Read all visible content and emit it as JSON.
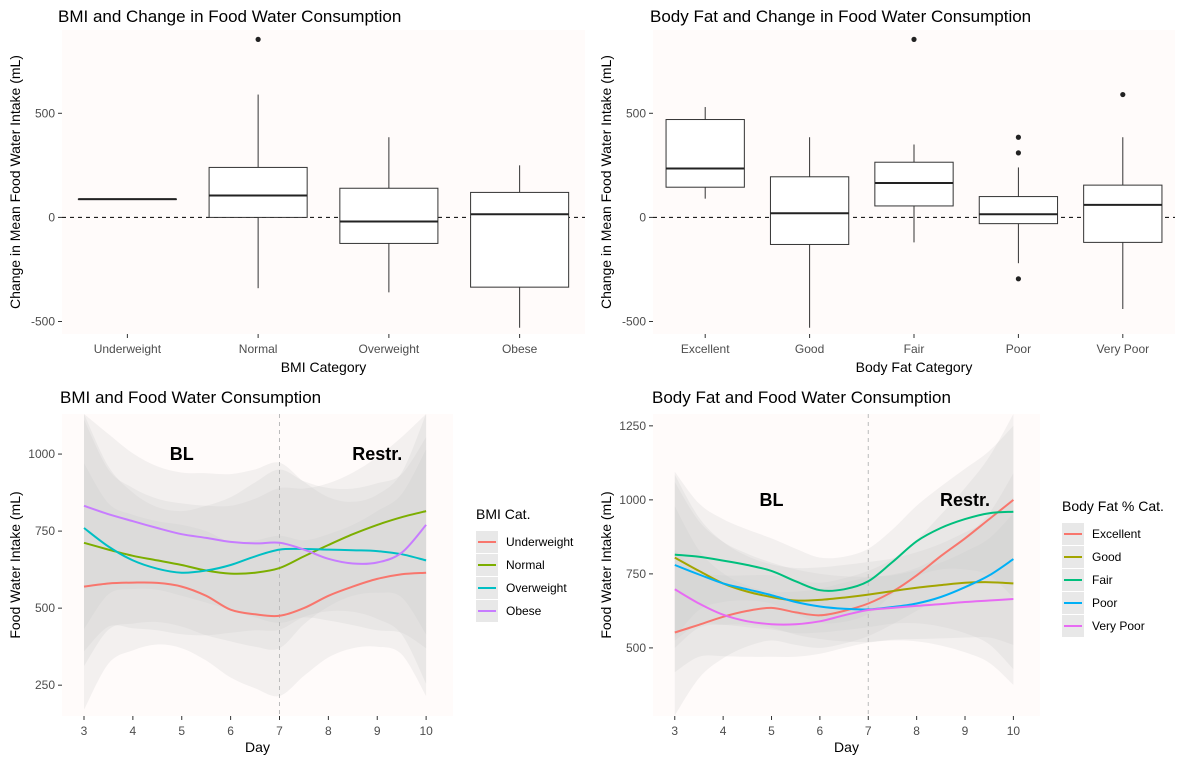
{
  "chart_data": [
    {
      "type": "box",
      "title": "BMI and Change in Food Water Consumption",
      "xlabel": "BMI Category",
      "ylabel": "Change in Mean Food Water Intake (mL)",
      "ylim": [
        -560,
        900
      ],
      "yticks": [
        -500,
        0,
        500
      ],
      "reference_line_y": 0,
      "categories": [
        "Underweight",
        "Normal",
        "Overweight",
        "Obese"
      ],
      "boxes": [
        {
          "category": "Underweight",
          "lower_whisker": 88,
          "q1": 88,
          "median": 88,
          "q3": 88,
          "upper_whisker": 88,
          "outliers": []
        },
        {
          "category": "Normal",
          "lower_whisker": -340,
          "q1": 0,
          "median": 105,
          "q3": 240,
          "upper_whisker": 590,
          "outliers": [
            855
          ]
        },
        {
          "category": "Overweight",
          "lower_whisker": -360,
          "q1": -125,
          "median": -20,
          "q3": 140,
          "upper_whisker": 385,
          "outliers": []
        },
        {
          "category": "Obese",
          "lower_whisker": -530,
          "q1": -335,
          "median": 15,
          "q3": 120,
          "upper_whisker": 250,
          "outliers": []
        }
      ]
    },
    {
      "type": "box",
      "title": "Body Fat and Change in Food Water Consumption",
      "xlabel": "Body Fat Category",
      "ylabel": "Change in Mean Food Water Intake (mL)",
      "ylim": [
        -560,
        900
      ],
      "yticks": [
        -500,
        0,
        500
      ],
      "reference_line_y": 0,
      "categories": [
        "Excellent",
        "Good",
        "Fair",
        "Poor",
        "Very Poor"
      ],
      "boxes": [
        {
          "category": "Excellent",
          "lower_whisker": 90,
          "q1": 145,
          "median": 235,
          "q3": 470,
          "upper_whisker": 530,
          "outliers": []
        },
        {
          "category": "Good",
          "lower_whisker": -530,
          "q1": -130,
          "median": 20,
          "q3": 195,
          "upper_whisker": 385,
          "outliers": []
        },
        {
          "category": "Fair",
          "lower_whisker": -120,
          "q1": 55,
          "median": 165,
          "q3": 265,
          "upper_whisker": 350,
          "outliers": [
            855
          ]
        },
        {
          "category": "Poor",
          "lower_whisker": -220,
          "q1": -30,
          "median": 15,
          "q3": 100,
          "upper_whisker": 240,
          "outliers": [
            385,
            310,
            -295
          ]
        },
        {
          "category": "Very Poor",
          "lower_whisker": -440,
          "q1": -120,
          "median": 60,
          "q3": 155,
          "upper_whisker": 385,
          "outliers": [
            590
          ]
        }
      ]
    },
    {
      "type": "line",
      "title": "BMI and Food Water Consumption",
      "xlabel": "Day",
      "ylabel": "Food Water Intake (mL)",
      "xlim": [
        2.55,
        10.55
      ],
      "ylim": [
        150,
        1130
      ],
      "xticks": [
        3,
        4,
        5,
        6,
        7,
        8,
        9,
        10
      ],
      "yticks": [
        250,
        500,
        750,
        1000
      ],
      "vline_x": 7,
      "annotations": [
        {
          "text": "BL",
          "x": 5,
          "y": 1000
        },
        {
          "text": "Restr.",
          "x": 9,
          "y": 1000
        }
      ],
      "legend": {
        "title": "BMI Cat.",
        "position": "right"
      },
      "x": [
        3,
        3.5,
        4,
        4.5,
        5,
        5.5,
        6,
        6.5,
        7,
        7.5,
        8,
        8.5,
        9,
        9.5,
        10
      ],
      "series": [
        {
          "name": "Underweight",
          "color": "#F8766D",
          "values": [
            570,
            580,
            583,
            582,
            570,
            540,
            495,
            480,
            475,
            500,
            540,
            570,
            595,
            610,
            615
          ]
        },
        {
          "name": "Normal",
          "color": "#7CAE00",
          "values": [
            712,
            690,
            670,
            655,
            640,
            622,
            612,
            615,
            630,
            668,
            705,
            740,
            770,
            795,
            815
          ]
        },
        {
          "name": "Overweight",
          "color": "#00BFC4",
          "values": [
            760,
            700,
            655,
            628,
            615,
            622,
            640,
            668,
            690,
            692,
            690,
            688,
            685,
            675,
            655
          ]
        },
        {
          "name": "Obese",
          "color": "#C77CFF",
          "values": [
            832,
            805,
            782,
            760,
            740,
            728,
            715,
            710,
            712,
            690,
            660,
            645,
            648,
            680,
            770
          ]
        }
      ],
      "ribbon_halfwidth": [
        400,
        260,
        220,
        200,
        200,
        210,
        220,
        240,
        260,
        220,
        200,
        200,
        220,
        260,
        400
      ]
    },
    {
      "type": "line",
      "title": "Body Fat and Food Water Consumption",
      "xlabel": "Day",
      "ylabel": "Food Water Intake (mL)",
      "xlim": [
        2.55,
        10.55
      ],
      "ylim": [
        270,
        1290
      ],
      "xticks": [
        3,
        4,
        5,
        6,
        7,
        8,
        9,
        10
      ],
      "yticks": [
        500,
        750,
        1000,
        1250
      ],
      "vline_x": 7,
      "annotations": [
        {
          "text": "BL",
          "x": 5,
          "y": 1000
        },
        {
          "text": "Restr.",
          "x": 9,
          "y": 1000
        }
      ],
      "legend": {
        "title": "Body Fat % Cat.",
        "position": "right"
      },
      "x": [
        3,
        3.5,
        4,
        4.5,
        5,
        5.5,
        6,
        6.5,
        7,
        7.5,
        8,
        8.5,
        9,
        9.5,
        10
      ],
      "series": [
        {
          "name": "Excellent",
          "color": "#F8766D",
          "values": [
            552,
            578,
            605,
            625,
            635,
            620,
            610,
            625,
            650,
            690,
            745,
            810,
            870,
            935,
            1000
          ]
        },
        {
          "name": "Good",
          "color": "#A3A500",
          "values": [
            805,
            760,
            718,
            690,
            672,
            660,
            662,
            670,
            680,
            692,
            703,
            712,
            720,
            722,
            718
          ]
        },
        {
          "name": "Fair",
          "color": "#00BF7D",
          "values": [
            815,
            808,
            795,
            780,
            760,
            725,
            695,
            698,
            725,
            790,
            860,
            905,
            935,
            955,
            960
          ]
        },
        {
          "name": "Poor",
          "color": "#00B0F6",
          "values": [
            780,
            748,
            718,
            698,
            678,
            655,
            640,
            632,
            630,
            638,
            650,
            672,
            705,
            745,
            800
          ]
        },
        {
          "name": "Very Poor",
          "color": "#E76BF3",
          "values": [
            698,
            650,
            612,
            590,
            580,
            580,
            590,
            610,
            628,
            635,
            642,
            648,
            655,
            660,
            665
          ]
        }
      ],
      "ribbon_halfwidth": [
        280,
        180,
        140,
        120,
        110,
        110,
        110,
        110,
        110,
        110,
        120,
        140,
        170,
        210,
        290
      ]
    }
  ]
}
